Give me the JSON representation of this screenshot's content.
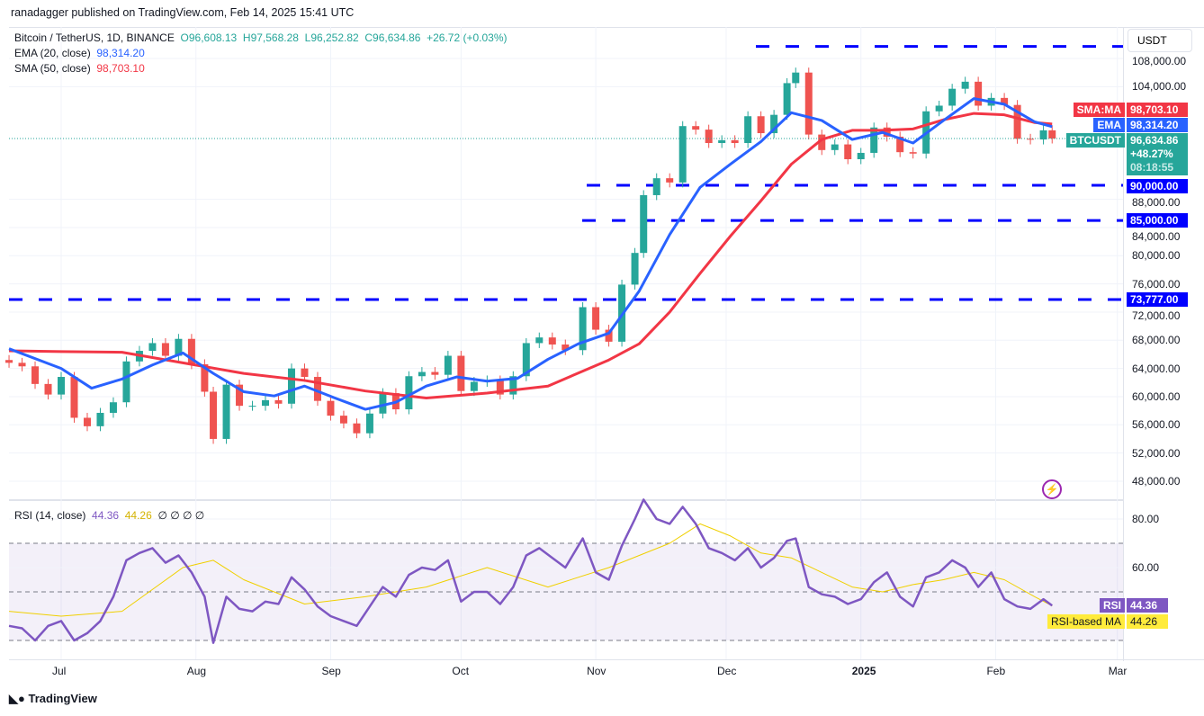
{
  "header": {
    "published": "ranadagger published on TradingView.com, Feb 14, 2025 15:41 UTC"
  },
  "legend": {
    "symbol": "Bitcoin / TetherUS, 1D, BINANCE",
    "open": "O96,608.13",
    "high": "H97,568.28",
    "low": "L96,252.82",
    "close": "C96,634.86",
    "change": "+26.72 (+0.03%)",
    "ema_label": "EMA (20, close)",
    "ema_value": "98,314.20",
    "sma_label": "SMA (50, close)",
    "sma_value": "98,703.10",
    "rsi_label": "RSI (14, close)",
    "rsi_value": "44.36",
    "rsi_ma_value": "44.26",
    "rsi_extra": "∅ ∅ ∅ ∅"
  },
  "price_axis": {
    "currency": "USDT",
    "ticks": [
      "108,000.00",
      "104,000.00",
      "88,000.00",
      "84,000.00",
      "80,000.00",
      "76,000.00",
      "72,000.00",
      "68,000.00",
      "64,000.00",
      "60,000.00",
      "56,000.00",
      "52,000.00",
      "48,000.00"
    ],
    "tick_values": [
      108000,
      104000,
      88000,
      84000,
      80000,
      76000,
      72000,
      68000,
      64000,
      60000,
      56000,
      52000,
      48000
    ]
  },
  "price_tags": {
    "sma": {
      "name": "SMA:MA",
      "value": "98,703.10"
    },
    "ema": {
      "name": "EMA",
      "value": "98,314.20"
    },
    "last": {
      "name": "BTCUSDT",
      "value": "96,634.86",
      "change": "+48.27%",
      "countdown": "08:18:55"
    },
    "level_90000": "90,000.00",
    "level_85000": "85,000.00",
    "level_73777": "73,777.00"
  },
  "rsi_axis": {
    "ticks": [
      "80.00",
      "60.00"
    ],
    "tick_values": [
      80,
      60
    ]
  },
  "rsi_tags": {
    "rsi_name": "RSI",
    "rsi_value": "44.36",
    "ma_name": "RSI-based MA",
    "ma_value": "44.26"
  },
  "time_axis": {
    "labels": [
      "Jul",
      "Aug",
      "Sep",
      "Oct",
      "Nov",
      "Dec",
      "2025",
      "Feb",
      "Mar"
    ],
    "dates": [
      "2024-07-01",
      "2024-08-01",
      "2024-09-01",
      "2024-10-01",
      "2024-11-01",
      "2024-12-01",
      "2025-01-01",
      "2025-02-01",
      "2025-03-01"
    ]
  },
  "footer": {
    "brand": "TradingView"
  },
  "colors": {
    "up": "#26a69a",
    "down": "#ef5350",
    "ema": "#2962ff",
    "sma": "#f23645",
    "levels": "#0000ff",
    "rsi": "#7e57c2",
    "rsi_ma": "#f0d000"
  },
  "chart_data": {
    "type": "candlestick",
    "title": "Bitcoin / TetherUS, 1D, BINANCE",
    "ylim": [
      46000,
      110500
    ],
    "horizontal_levels": [
      109700,
      90000,
      85000,
      73777
    ],
    "closes": [
      [
        "2024-06-19",
        64800
      ],
      [
        "2024-06-22",
        64300
      ],
      [
        "2024-06-25",
        61800
      ],
      [
        "2024-06-28",
        60300
      ],
      [
        "2024-07-01",
        62800
      ],
      [
        "2024-07-04",
        57000
      ],
      [
        "2024-07-07",
        55800
      ],
      [
        "2024-07-10",
        57700
      ],
      [
        "2024-07-13",
        59200
      ],
      [
        "2024-07-16",
        65000
      ],
      [
        "2024-07-19",
        66500
      ],
      [
        "2024-07-22",
        67600
      ],
      [
        "2024-07-25",
        65800
      ],
      [
        "2024-07-28",
        68200
      ],
      [
        "2024-07-31",
        64600
      ],
      [
        "2024-08-03",
        60700
      ],
      [
        "2024-08-05",
        54000
      ],
      [
        "2024-08-08",
        61700
      ],
      [
        "2024-08-11",
        58700
      ],
      [
        "2024-08-14",
        58700
      ],
      [
        "2024-08-17",
        59500
      ],
      [
        "2024-08-20",
        59000
      ],
      [
        "2024-08-23",
        64000
      ],
      [
        "2024-08-26",
        62800
      ],
      [
        "2024-08-29",
        59400
      ],
      [
        "2024-09-01",
        57300
      ],
      [
        "2024-09-04",
        56200
      ],
      [
        "2024-09-07",
        54800
      ],
      [
        "2024-09-10",
        57600
      ],
      [
        "2024-09-13",
        60500
      ],
      [
        "2024-09-16",
        58200
      ],
      [
        "2024-09-19",
        62900
      ],
      [
        "2024-09-22",
        63500
      ],
      [
        "2024-09-25",
        63100
      ],
      [
        "2024-09-28",
        65800
      ],
      [
        "2024-10-01",
        60800
      ],
      [
        "2024-10-04",
        62100
      ],
      [
        "2024-10-07",
        62300
      ],
      [
        "2024-10-10",
        60300
      ],
      [
        "2024-10-13",
        62900
      ],
      [
        "2024-10-16",
        67600
      ],
      [
        "2024-10-19",
        68400
      ],
      [
        "2024-10-22",
        67400
      ],
      [
        "2024-10-25",
        66600
      ],
      [
        "2024-10-29",
        72700
      ],
      [
        "2024-11-01",
        69500
      ],
      [
        "2024-11-04",
        67800
      ],
      [
        "2024-11-07",
        75900
      ],
      [
        "2024-11-10",
        80400
      ],
      [
        "2024-11-12",
        88600
      ],
      [
        "2024-11-15",
        91000
      ],
      [
        "2024-11-18",
        90400
      ],
      [
        "2024-11-21",
        98400
      ],
      [
        "2024-11-24",
        97900
      ],
      [
        "2024-11-27",
        96000
      ],
      [
        "2024-11-30",
        96400
      ],
      [
        "2024-12-03",
        96000
      ],
      [
        "2024-12-06",
        99800
      ],
      [
        "2024-12-09",
        97400
      ],
      [
        "2024-12-12",
        100000
      ],
      [
        "2024-12-15",
        104500
      ],
      [
        "2024-12-17",
        106000
      ],
      [
        "2024-12-20",
        97200
      ],
      [
        "2024-12-23",
        95000
      ],
      [
        "2024-12-26",
        95800
      ],
      [
        "2024-12-29",
        93700
      ],
      [
        "2025-01-01",
        94600
      ],
      [
        "2025-01-04",
        98200
      ],
      [
        "2025-01-07",
        96900
      ],
      [
        "2025-01-10",
        94700
      ],
      [
        "2025-01-13",
        94500
      ],
      [
        "2025-01-16",
        100500
      ],
      [
        "2025-01-19",
        101300
      ],
      [
        "2025-01-22",
        103700
      ],
      [
        "2025-01-25",
        104700
      ],
      [
        "2025-01-28",
        101300
      ],
      [
        "2025-01-31",
        102400
      ],
      [
        "2025-02-03",
        101400
      ],
      [
        "2025-02-06",
        96600
      ],
      [
        "2025-02-09",
        96500
      ],
      [
        "2025-02-12",
        97800
      ],
      [
        "2025-02-14",
        96634.86
      ]
    ],
    "ema20": [
      [
        "2024-06-19",
        66800
      ],
      [
        "2024-07-01",
        64000
      ],
      [
        "2024-07-08",
        61200
      ],
      [
        "2024-07-15",
        62500
      ],
      [
        "2024-07-22",
        64500
      ],
      [
        "2024-07-29",
        66200
      ],
      [
        "2024-08-05",
        63300
      ],
      [
        "2024-08-12",
        60700
      ],
      [
        "2024-08-19",
        60100
      ],
      [
        "2024-08-26",
        61500
      ],
      [
        "2024-09-02",
        59800
      ],
      [
        "2024-09-09",
        58200
      ],
      [
        "2024-09-16",
        59200
      ],
      [
        "2024-09-23",
        61500
      ],
      [
        "2024-09-30",
        62800
      ],
      [
        "2024-10-07",
        62200
      ],
      [
        "2024-10-14",
        62600
      ],
      [
        "2024-10-21",
        65300
      ],
      [
        "2024-10-28",
        67500
      ],
      [
        "2024-11-04",
        69000
      ],
      [
        "2024-11-11",
        75000
      ],
      [
        "2024-11-18",
        83000
      ],
      [
        "2024-11-25",
        89700
      ],
      [
        "2024-12-02",
        93000
      ],
      [
        "2024-12-09",
        96200
      ],
      [
        "2024-12-16",
        100300
      ],
      [
        "2024-12-23",
        99200
      ],
      [
        "2024-12-30",
        96500
      ],
      [
        "2025-01-06",
        97500
      ],
      [
        "2025-01-13",
        96000
      ],
      [
        "2025-01-20",
        99200
      ],
      [
        "2025-01-27",
        102300
      ],
      [
        "2025-02-03",
        101500
      ],
      [
        "2025-02-10",
        99000
      ],
      [
        "2025-02-14",
        98314.2
      ]
    ],
    "sma50": [
      [
        "2024-06-19",
        66500
      ],
      [
        "2024-07-01",
        66400
      ],
      [
        "2024-07-15",
        66300
      ],
      [
        "2024-07-29",
        64800
      ],
      [
        "2024-08-12",
        63300
      ],
      [
        "2024-08-26",
        62300
      ],
      [
        "2024-09-09",
        60800
      ],
      [
        "2024-09-23",
        59800
      ],
      [
        "2024-10-07",
        60500
      ],
      [
        "2024-10-21",
        61500
      ],
      [
        "2024-11-04",
        65200
      ],
      [
        "2024-11-11",
        67500
      ],
      [
        "2024-11-18",
        72000
      ],
      [
        "2024-11-25",
        77500
      ],
      [
        "2024-12-02",
        82800
      ],
      [
        "2024-12-09",
        87800
      ],
      [
        "2024-12-16",
        93000
      ],
      [
        "2024-12-23",
        96500
      ],
      [
        "2024-12-30",
        97800
      ],
      [
        "2025-01-06",
        97800
      ],
      [
        "2025-01-13",
        98000
      ],
      [
        "2025-01-20",
        99300
      ],
      [
        "2025-01-27",
        100200
      ],
      [
        "2025-02-03",
        100000
      ],
      [
        "2025-02-10",
        98900
      ],
      [
        "2025-02-14",
        98703.1
      ]
    ],
    "rsi": [
      36,
      35,
      30,
      36,
      38,
      30,
      33,
      38,
      48,
      63,
      66,
      68,
      62,
      65,
      58,
      48,
      29,
      48,
      43,
      42,
      46,
      45,
      56,
      51,
      44,
      40,
      38,
      36,
      44,
      52,
      48,
      57,
      60,
      59,
      63,
      46,
      50,
      50,
      45,
      52,
      65,
      68,
      64,
      60,
      72,
      58,
      55,
      69,
      80,
      88,
      80,
      78,
      85,
      78,
      68,
      66,
      63,
      68,
      60,
      64,
      71,
      72,
      52,
      49,
      48,
      45,
      47,
      54,
      58,
      48,
      44,
      56,
      58,
      63,
      60,
      52,
      58,
      47,
      44,
      43,
      47,
      44.36
    ],
    "rsi_ma": [
      [
        "2024-06-19",
        42
      ],
      [
        "2024-07-01",
        40
      ],
      [
        "2024-07-15",
        42
      ],
      [
        "2024-07-29",
        60
      ],
      [
        "2024-08-05",
        63
      ],
      [
        "2024-08-12",
        55
      ],
      [
        "2024-08-26",
        45
      ],
      [
        "2024-09-09",
        48
      ],
      [
        "2024-09-23",
        52
      ],
      [
        "2024-10-07",
        60
      ],
      [
        "2024-10-21",
        52
      ],
      [
        "2024-11-04",
        60
      ],
      [
        "2024-11-18",
        70
      ],
      [
        "2024-11-25",
        78
      ],
      [
        "2024-12-02",
        73
      ],
      [
        "2024-12-09",
        66
      ],
      [
        "2024-12-16",
        64
      ],
      [
        "2024-12-23",
        58
      ],
      [
        "2024-12-30",
        52
      ],
      [
        "2025-01-06",
        50
      ],
      [
        "2025-01-13",
        53
      ],
      [
        "2025-01-20",
        55
      ],
      [
        "2025-01-27",
        58
      ],
      [
        "2025-02-03",
        55
      ],
      [
        "2025-02-10",
        48
      ],
      [
        "2025-02-14",
        44.26
      ]
    ],
    "rsi_bands": [
      70,
      50,
      30
    ]
  }
}
